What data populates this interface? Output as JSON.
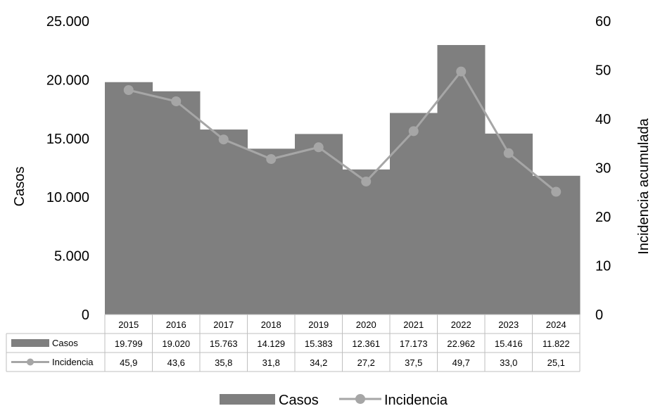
{
  "chart_data": {
    "type": "bar",
    "categories": [
      "2015",
      "2016",
      "2017",
      "2018",
      "2019",
      "2020",
      "2021",
      "2022",
      "2023",
      "2024"
    ],
    "series": [
      {
        "name": "Casos",
        "type": "bar",
        "axis": "left",
        "values": [
          19799,
          19020,
          15763,
          14129,
          15383,
          12361,
          17173,
          22962,
          15416,
          11822
        ],
        "labels": [
          "19.799",
          "19.020",
          "15.763",
          "14.129",
          "15.383",
          "12.361",
          "17.173",
          "22.962",
          "15.416",
          "11.822"
        ]
      },
      {
        "name": "Incidencia",
        "type": "line",
        "axis": "right",
        "values": [
          45.9,
          43.6,
          35.8,
          31.8,
          34.2,
          27.2,
          37.5,
          49.7,
          33.0,
          25.1
        ],
        "labels": [
          "45,9",
          "43,6",
          "35,8",
          "31,8",
          "34,2",
          "27,2",
          "37,5",
          "49,7",
          "33,0",
          "25,1"
        ]
      }
    ],
    "ylabel": "Casos",
    "y2label": "Incidencia acumulada",
    "ylim": [
      0,
      25000
    ],
    "y2lim": [
      0,
      60
    ],
    "yticks": [
      "0",
      "5.000",
      "10.000",
      "15.000",
      "20.000",
      "25.000"
    ],
    "y2ticks": [
      "0",
      "10",
      "20",
      "30",
      "40",
      "50",
      "60"
    ],
    "grid": false,
    "legend": "bottom",
    "data_table": true,
    "colors": {
      "bar": "#7f7f7f",
      "line": "#a6a6a6",
      "table_border": "#bfbfbf"
    }
  }
}
